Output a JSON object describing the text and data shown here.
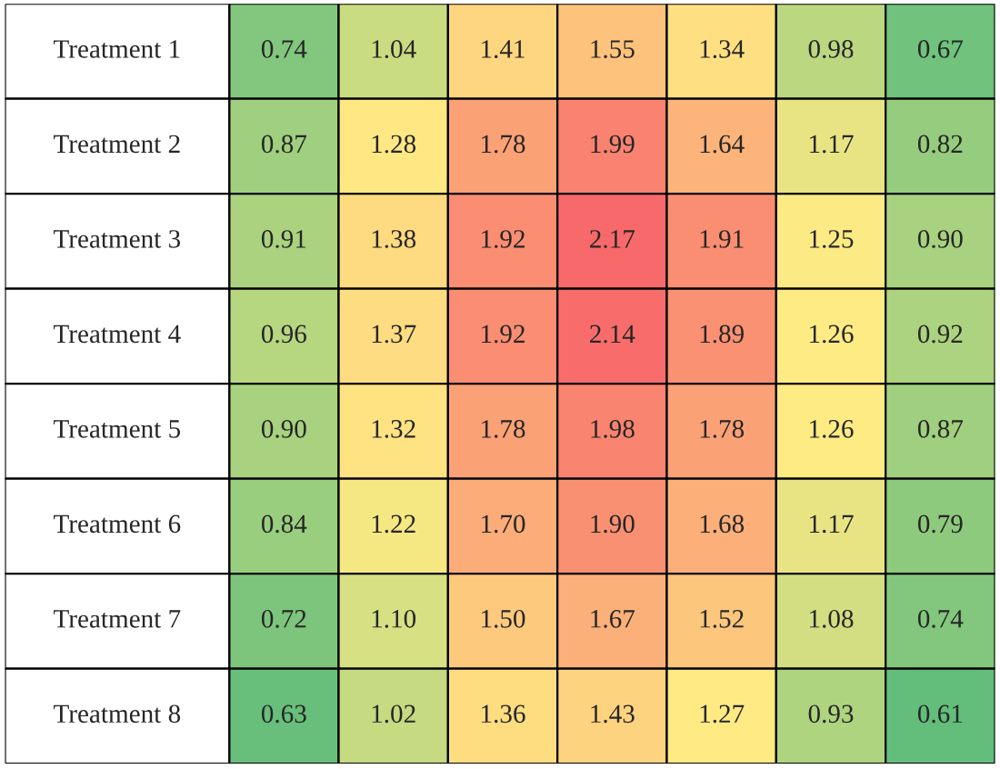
{
  "chart_data": {
    "type": "heatmap",
    "categories": [
      null,
      null,
      null,
      null,
      null,
      null,
      null
    ],
    "y_categories": [
      "Treatment 1",
      "Treatment 2",
      "Treatment 3",
      "Treatment 4",
      "Treatment 5",
      "Treatment 6",
      "Treatment 7",
      "Treatment 8"
    ],
    "cells": [
      [
        0.74,
        1.04,
        1.41,
        1.55,
        1.34,
        0.98,
        0.67
      ],
      [
        0.87,
        1.28,
        1.78,
        1.99,
        1.64,
        1.17,
        0.82
      ],
      [
        0.91,
        1.38,
        1.92,
        2.17,
        1.91,
        1.25,
        0.9
      ],
      [
        0.96,
        1.37,
        1.92,
        2.14,
        1.89,
        1.26,
        0.92
      ],
      [
        0.9,
        1.32,
        1.78,
        1.98,
        1.78,
        1.26,
        0.87
      ],
      [
        0.84,
        1.22,
        1.7,
        1.9,
        1.68,
        1.17,
        0.79
      ],
      [
        0.72,
        1.1,
        1.5,
        1.67,
        1.52,
        1.08,
        0.74
      ],
      [
        0.63,
        1.02,
        1.36,
        1.43,
        1.27,
        0.93,
        0.61
      ]
    ],
    "cell_labels": [
      [
        "0.74",
        "1.04",
        "1.41",
        "1.55",
        "1.34",
        "0.98",
        "0.67"
      ],
      [
        "0.87",
        "1.28",
        "1.78",
        "1.99",
        "1.64",
        "1.17",
        "0.82"
      ],
      [
        "0.91",
        "1.38",
        "1.92",
        "2.17",
        "1.91",
        "1.25",
        "0.90"
      ],
      [
        "0.96",
        "1.37",
        "1.92",
        "2.14",
        "1.89",
        "1.26",
        "0.92"
      ],
      [
        "0.90",
        "1.32",
        "1.78",
        "1.98",
        "1.78",
        "1.26",
        "0.87"
      ],
      [
        "0.84",
        "1.22",
        "1.70",
        "1.90",
        "1.68",
        "1.17",
        "0.79"
      ],
      [
        "0.72",
        "1.10",
        "1.50",
        "1.67",
        "1.52",
        "1.08",
        "0.74"
      ],
      [
        "0.63",
        "1.02",
        "1.36",
        "1.43",
        "1.27",
        "0.93",
        "0.61"
      ]
    ]
  }
}
